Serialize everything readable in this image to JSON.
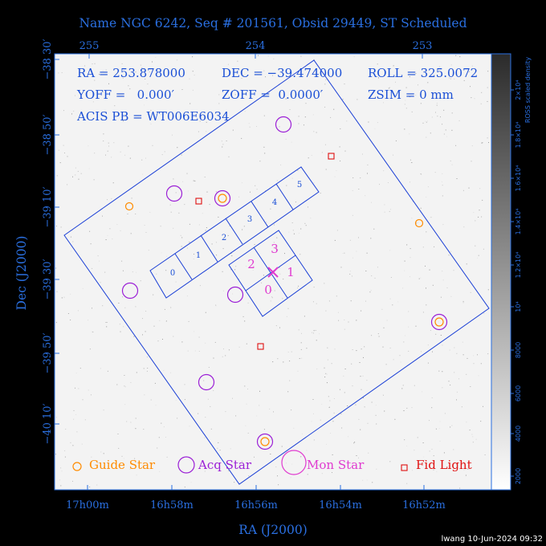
{
  "title": "Name NGC 6242, Seq # 201561, Obsid 29449, ST Scheduled",
  "header": {
    "ra": "RA = 253.878000",
    "dec": "DEC = −39.474000",
    "roll": "ROLL = 325.0072",
    "yoff": "YOFF =   0.000′",
    "zoff": "ZOFF =  0.0000′",
    "zsim": "ZSIM = 0 mm",
    "acis": "ACIS PB = WT006E6034"
  },
  "axes": {
    "xlabel": "RA (J2000)",
    "ylabel": "Dec (J2000)",
    "bottom_ticks": [
      "17h00m",
      "16h58m",
      "16h56m",
      "16h54m",
      "16h52m"
    ],
    "top_ticks": [
      "255",
      "254",
      "253"
    ],
    "left_ticks": [
      "−38 30′",
      "−38 50′",
      "−39 10′",
      "−39 30′",
      "−39 50′",
      "−40 10′"
    ]
  },
  "colorbar": {
    "label": "ROSS scaled density",
    "ticks": [
      "2000",
      "4000",
      "6000",
      "8000",
      "10⁴",
      "1.2×10⁴",
      "1.4×10⁴",
      "1.6×10⁴",
      "1.8×10⁴",
      "2×10⁴"
    ]
  },
  "legend": {
    "guide": "Guide Star",
    "acq": "Acq Star",
    "mon": "Mon Star",
    "fid": "Fid Light"
  },
  "colors": {
    "guide": "#ff8c00",
    "acq": "#9b1fd6",
    "mon": "#e03bd0",
    "fid": "#e01010",
    "frame": "#1a3fd6",
    "axis_text": "#2a6fe0"
  },
  "footer": "lwang 10-Jun-2024 09:32",
  "chart_data": {
    "type": "scatter",
    "title": "Name NGC 6242, Seq # 201561, Obsid 29449, ST Scheduled",
    "xlabel": "RA (J2000)",
    "ylabel": "Dec (J2000)",
    "aimpoint": {
      "ra_deg": 253.878,
      "dec_deg": -39.474
    },
    "series": [
      {
        "name": "Guide Star",
        "points": [
          {
            "ra": "16h59m05s",
            "dec": "−39 10′"
          },
          {
            "ra": "16h56m35s",
            "dec": "−39 07′"
          },
          {
            "ra": "16h52m10s",
            "dec": "−39 14′"
          },
          {
            "ra": "16h51m35s",
            "dec": "−39 46′"
          },
          {
            "ra": "16h55m50s",
            "dec": "−40 16′"
          }
        ]
      },
      {
        "name": "Acq Star",
        "points": [
          {
            "ra": "16h54m45s",
            "dec": "−38 49′"
          },
          {
            "ra": "16h57m45s",
            "dec": "−39 06′"
          },
          {
            "ra": "16h56m35s",
            "dec": "−39 07′"
          },
          {
            "ra": "16h59m05s",
            "dec": "−39 34′"
          },
          {
            "ra": "16h56m05s",
            "dec": "−39 35′"
          },
          {
            "ra": "16h51m35s",
            "dec": "−39 46′"
          },
          {
            "ra": "16h57m00s",
            "dec": "−40 05′"
          },
          {
            "ra": "16h55m50s",
            "dec": "−40 16′"
          }
        ]
      },
      {
        "name": "Fid Light",
        "points": [
          {
            "ra": "16h53m55s",
            "dec": "−38 57′"
          },
          {
            "ra": "16h57m25s",
            "dec": "−39 09′"
          },
          {
            "ra": "16h55m55s",
            "dec": "−39 55′"
          }
        ]
      }
    ],
    "ccd_labels": {
      "acis_s": [
        "0",
        "1",
        "2",
        "3",
        "4",
        "5"
      ],
      "acis_i": [
        "0",
        "1",
        "2",
        "3"
      ]
    }
  }
}
